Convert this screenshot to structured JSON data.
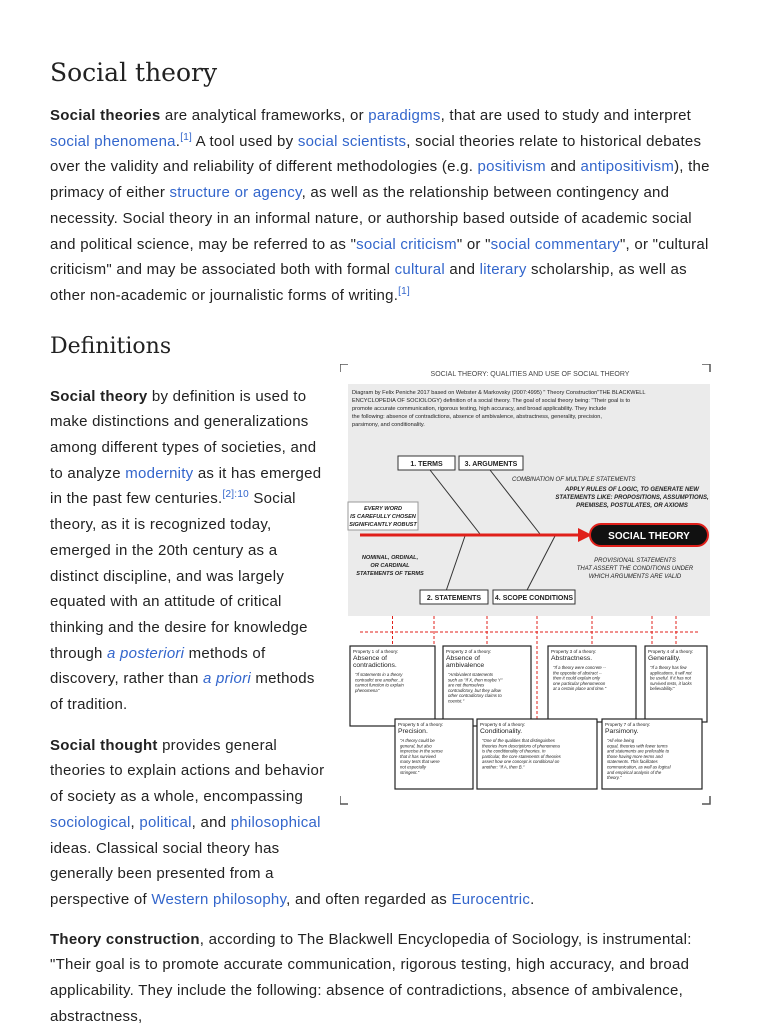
{
  "title": "Social theory",
  "intro": [
    "Social theories",
    " are analytical frameworks, or ",
    "paradigms",
    ", that are used to study and interpret ",
    "social phenomena",
    ".",
    "[1]",
    " A tool used by ",
    "social scientists",
    ", social theories relate to historical debates over the validity and reliability of different methodologies (e.g. ",
    "positivism",
    " and ",
    "antipositivism",
    "), the primacy of either ",
    "structure or agency",
    ", as well as the relationship between contingency and necessity. Social theory in an informal nature, or authorship based outside of academic social and political science, may be referred to as \"",
    "social criticism",
    "\" or \"",
    "social commentary",
    "\", or \"cultural criticism\" and may be associated both with formal ",
    "cultural",
    " and ",
    "literary",
    " scholarship, as well as other non-academic or journalistic forms of writing.",
    "[1]"
  ],
  "definitions": {
    "heading": "Definitions",
    "p1": [
      "Social theory",
      " by definition is used to make distinctions and generalizations among different types of societies, and to analyze ",
      "modernity",
      " as it has emerged in the past few centuries.",
      "[2]:10",
      " Social theory, as it is recognized today, emerged in the 20th century as a distinct discipline, and was largely equated with an attitude of critical thinking and the desire for knowledge through ",
      "a posteriori",
      " methods of discovery, rather than ",
      "a priori",
      " methods of tradition."
    ],
    "p2": [
      "Social thought",
      " provides general theories to explain actions and behavior of society as a whole, encompassing ",
      "sociological",
      ", ",
      "political",
      ", and ",
      "philosophical",
      " ideas. Classical social theory has generally been presented from a perspective of ",
      "Western philosophy",
      ", and often regarded as ",
      "Eurocentric",
      "."
    ],
    "p3": [
      "Theory construction",
      ", according to The Blackwell Encyclopedia of Sociology, is instrumental: \"Their goal is to promote accurate communication, rigorous testing, high accuracy, and broad applicability. They include the following: absence of contradictions, absence of ambivalence, abstractness,"
    ]
  },
  "figure": {
    "title": "SOCIAL THEORY: QUALITIES AND USE OF SOCIAL THEORY",
    "description": [
      "Diagram by Felix Peniche 2017 based on Webster & Markovsky (2007:4995) \" Theory Construction\"THE BLACKWELL",
      "ENCYCLOPEDIA OF SOCIOLOGY) definition of a social theory. The goal of social theory being: \"Their goal is to",
      "promote accurate communication, rigorous testing, high accuracy, and broad applicability. They include",
      "the following: absence of contradictions, absence of ambivalence, abstractness, generality, precision,",
      "parsimony, and conditionality."
    ],
    "terms": "1. TERMS",
    "arguments": "3. ARGUMENTS",
    "combination": "COMBINATION OF MULTIPLE STATEMENTS",
    "apply_rules": [
      "APPLY RULES OF LOGIC, TO GENERATE NEW",
      "STATEMENTS LIKE: PROPOSITIONS, ASSUMPTIONS,",
      "PREMISES, POSTULATES, OR AXIOMS"
    ],
    "every_word": [
      "EVERY WORD",
      "IS CAREFULLY CHOSEN",
      "SIGNIFICANTLY ROBUST"
    ],
    "social_theory": "SOCIAL THEORY",
    "nominal": [
      "NOMINAL, ORDINAL,",
      "OR CARDINAL",
      "STATEMENTS OF TERMS"
    ],
    "provisional": [
      "PROVISIONAL STATEMENTS",
      "THAT ASSERT THE CONDITIONS UNDER",
      "WHICH ARGUMENTS ARE VALID"
    ],
    "statements": "2. STATEMENTS",
    "scope_conditions": "4. SCOPE CONDITIONS",
    "properties": [
      {
        "label": "Property 1 of a theory:",
        "name": [
          "Absence of",
          "contradictions."
        ],
        "body": [
          "\"If statements in a theory",
          "contradict one another...it",
          "cannot function to explain",
          "phenomena\""
        ]
      },
      {
        "label": "Property 2 of a theory:",
        "name": [
          "Absence of",
          "ambivalence"
        ],
        "body": [
          "\"Ambivalent statements",
          "such as \"If X, then maybe Y\"",
          "are not themselves",
          "contradictory, but they allow",
          "other contradictory claims to",
          "coexist.\""
        ]
      },
      {
        "label": "Property 3 of a theory:",
        "name": [
          "Abstractness."
        ],
        "body": [
          "\"If a theory were concrete --",
          "the opposite of abstract --",
          "then it could explain only",
          "one particular phenomenon",
          "at a certain place and time.\""
        ]
      },
      {
        "label": "Property 4 of a theory:",
        "name": [
          "Generality."
        ],
        "body": [
          "\"If a theory has few",
          "applications, it will not",
          "be useful. If it has not",
          "survived tests, it lacks",
          "believability.\""
        ]
      },
      {
        "label": "Property 5 of a theory:",
        "name": [
          "Precision."
        ],
        "body": [
          "\"A theory could be",
          "general, but also",
          "imprecise in the sense",
          "that it has survived",
          "many tests that were",
          "not especially",
          "stringent.\""
        ]
      },
      {
        "label": "Property 6 of a theory:",
        "name": [
          "Conditionality."
        ],
        "body": [
          "\"One of the qualities that distinguishes",
          "theories from descriptions of phenomena",
          "is the conditionality of theories. In",
          "particular, the core statements of theories",
          "assert how one concept is conditional on",
          "another: \"If A, then B.\""
        ]
      },
      {
        "label": "Property 7 of a theory:",
        "name": [
          "Parsimony."
        ],
        "body": [
          "\"All else being",
          "equal, theories with fewer terms",
          "and statements are preferable to",
          "those having more terms and",
          "statements. This facilitates",
          "communication, as well as logical",
          "and empirical analysis of the",
          "theory.\""
        ]
      }
    ]
  }
}
